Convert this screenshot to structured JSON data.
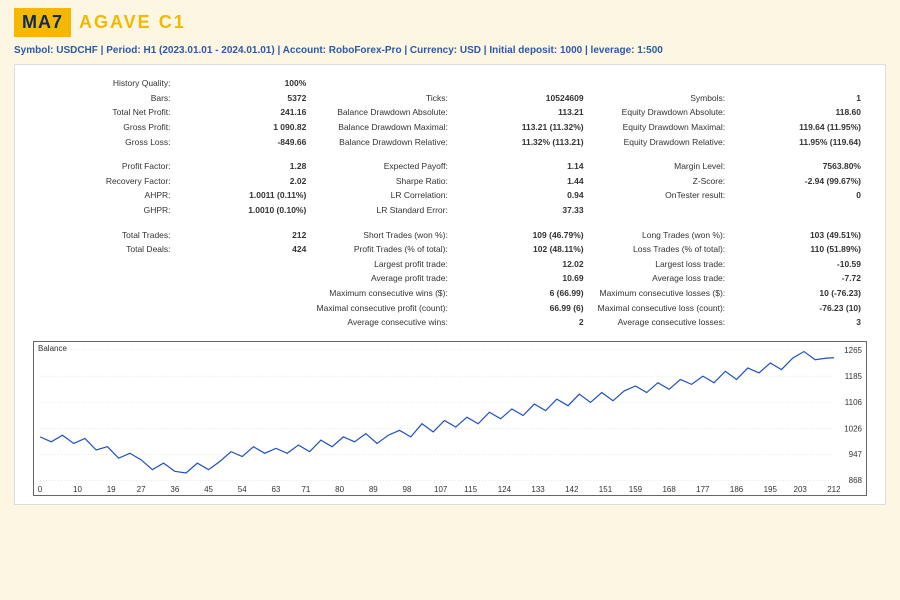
{
  "header": {
    "badge": "MA7",
    "title": "AGAVE C1"
  },
  "subtitle_parts": [
    "Symbol: USDCHF",
    "Period: H1 (2023.01.01 - 2024.01.01)",
    "Account: RoboForex-Pro",
    "Currency: USD",
    "Initial deposit: 1000",
    "leverage: 1:500"
  ],
  "stats_rows": [
    [
      [
        "History Quality:",
        "100%"
      ],
      [
        "",
        ""
      ],
      [
        "",
        ""
      ]
    ],
    [
      [
        "Bars:",
        "5372"
      ],
      [
        "Ticks:",
        "10524609"
      ],
      [
        "Symbols:",
        "1"
      ]
    ],
    [
      [
        "Total Net Profit:",
        "241.16"
      ],
      [
        "Balance Drawdown Absolute:",
        "113.21"
      ],
      [
        "Equity Drawdown Absolute:",
        "118.60"
      ]
    ],
    [
      [
        "Gross Profit:",
        "1 090.82"
      ],
      [
        "Balance Drawdown Maximal:",
        "113.21 (11.32%)"
      ],
      [
        "Equity Drawdown Maximal:",
        "119.64 (11.95%)"
      ]
    ],
    [
      [
        "Gross Loss:",
        "-849.66"
      ],
      [
        "Balance Drawdown Relative:",
        "11.32% (113.21)"
      ],
      [
        "Equity Drawdown Relative:",
        "11.95% (119.64)"
      ]
    ],
    "spacer",
    [
      [
        "Profit Factor:",
        "1.28"
      ],
      [
        "Expected Payoff:",
        "1.14"
      ],
      [
        "Margin Level:",
        "7563.80%"
      ]
    ],
    [
      [
        "Recovery Factor:",
        "2.02"
      ],
      [
        "Sharpe Ratio:",
        "1.44"
      ],
      [
        "Z-Score:",
        "-2.94 (99.67%)"
      ]
    ],
    [
      [
        "AHPR:",
        "1.0011 (0.11%)"
      ],
      [
        "LR Correlation:",
        "0.94"
      ],
      [
        "OnTester result:",
        "0"
      ]
    ],
    [
      [
        "GHPR:",
        "1.0010 (0.10%)"
      ],
      [
        "LR Standard Error:",
        "37.33"
      ],
      [
        "",
        ""
      ]
    ],
    "spacer",
    [
      [
        "Total Trades:",
        "212"
      ],
      [
        "Short Trades (won %):",
        "109 (46.79%)"
      ],
      [
        "Long Trades (won %):",
        "103 (49.51%)"
      ]
    ],
    [
      [
        "Total Deals:",
        "424"
      ],
      [
        "Profit Trades (% of total):",
        "102 (48.11%)"
      ],
      [
        "Loss Trades (% of total):",
        "110 (51.89%)"
      ]
    ],
    [
      [
        "",
        ""
      ],
      [
        "Largest profit trade:",
        "12.02"
      ],
      [
        "Largest loss trade:",
        "-10.59"
      ]
    ],
    [
      [
        "",
        ""
      ],
      [
        "Average profit trade:",
        "10.69"
      ],
      [
        "Average loss trade:",
        "-7.72"
      ]
    ],
    [
      [
        "",
        ""
      ],
      [
        "Maximum consecutive wins ($):",
        "6 (66.99)"
      ],
      [
        "Maximum consecutive losses ($):",
        "10 (-76.23)"
      ]
    ],
    [
      [
        "",
        ""
      ],
      [
        "Maximal consecutive profit (count):",
        "66.99 (6)"
      ],
      [
        "Maximal consecutive loss (count):",
        "-76.23 (10)"
      ]
    ],
    [
      [
        "",
        ""
      ],
      [
        "Average consecutive wins:",
        "2"
      ],
      [
        "Average consecutive losses:",
        "3"
      ]
    ]
  ],
  "chart": {
    "label": "Balance",
    "x_ticks": [
      0,
      10,
      19,
      27,
      36,
      45,
      54,
      63,
      71,
      80,
      89,
      98,
      107,
      115,
      124,
      133,
      142,
      151,
      159,
      168,
      177,
      186,
      195,
      203,
      212
    ],
    "y_ticks": [
      868,
      947,
      1026,
      1106,
      1185,
      1265
    ],
    "y_min": 868,
    "y_max": 1265,
    "x_max": 212,
    "line_color": "#1e4fbf",
    "points": [
      [
        0,
        1000
      ],
      [
        3,
        985
      ],
      [
        6,
        1005
      ],
      [
        9,
        980
      ],
      [
        12,
        995
      ],
      [
        15,
        960
      ],
      [
        18,
        970
      ],
      [
        21,
        935
      ],
      [
        24,
        950
      ],
      [
        27,
        930
      ],
      [
        30,
        900
      ],
      [
        33,
        920
      ],
      [
        36,
        895
      ],
      [
        39,
        890
      ],
      [
        42,
        920
      ],
      [
        45,
        900
      ],
      [
        48,
        925
      ],
      [
        51,
        955
      ],
      [
        54,
        940
      ],
      [
        57,
        970
      ],
      [
        60,
        950
      ],
      [
        63,
        965
      ],
      [
        66,
        950
      ],
      [
        69,
        975
      ],
      [
        72,
        955
      ],
      [
        75,
        990
      ],
      [
        78,
        970
      ],
      [
        81,
        1000
      ],
      [
        84,
        985
      ],
      [
        87,
        1010
      ],
      [
        90,
        980
      ],
      [
        93,
        1005
      ],
      [
        96,
        1020
      ],
      [
        99,
        1000
      ],
      [
        102,
        1040
      ],
      [
        105,
        1015
      ],
      [
        108,
        1050
      ],
      [
        111,
        1030
      ],
      [
        114,
        1060
      ],
      [
        117,
        1040
      ],
      [
        120,
        1075
      ],
      [
        123,
        1055
      ],
      [
        126,
        1085
      ],
      [
        129,
        1065
      ],
      [
        132,
        1100
      ],
      [
        135,
        1080
      ],
      [
        138,
        1115
      ],
      [
        141,
        1095
      ],
      [
        144,
        1130
      ],
      [
        147,
        1105
      ],
      [
        150,
        1135
      ],
      [
        153,
        1110
      ],
      [
        156,
        1140
      ],
      [
        159,
        1155
      ],
      [
        162,
        1135
      ],
      [
        165,
        1165
      ],
      [
        168,
        1145
      ],
      [
        171,
        1175
      ],
      [
        174,
        1160
      ],
      [
        177,
        1185
      ],
      [
        180,
        1165
      ],
      [
        183,
        1200
      ],
      [
        186,
        1175
      ],
      [
        189,
        1210
      ],
      [
        192,
        1195
      ],
      [
        195,
        1225
      ],
      [
        198,
        1205
      ],
      [
        201,
        1240
      ],
      [
        204,
        1260
      ],
      [
        207,
        1235
      ],
      [
        210,
        1240
      ],
      [
        212,
        1241
      ]
    ]
  }
}
